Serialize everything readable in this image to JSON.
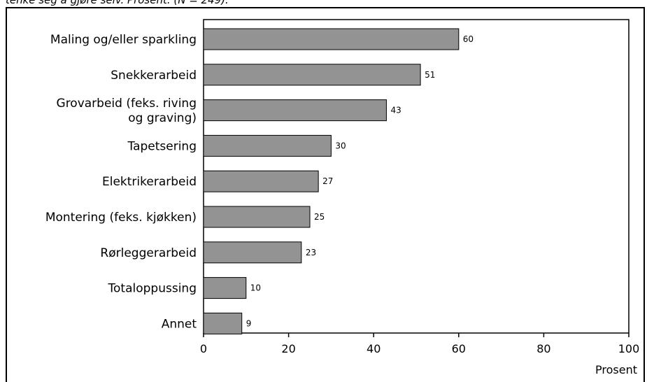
{
  "header": {
    "caption_fragment": "tenke seg å gjøre selv. Prosent. (N = 249)."
  },
  "chart_data": {
    "type": "bar",
    "orientation": "horizontal",
    "categories": [
      [
        "Maling og/eller sparkling"
      ],
      [
        "Snekkerarbeid"
      ],
      [
        "Grovarbeid (feks. riving",
        "og graving)"
      ],
      [
        "Tapetsering"
      ],
      [
        "Elektrikerarbeid"
      ],
      [
        "Montering (feks. kjøkken)"
      ],
      [
        "Rørleggerarbeid"
      ],
      [
        "Totaloppussing"
      ],
      [
        "Annet"
      ]
    ],
    "values": [
      60,
      51,
      43,
      30,
      27,
      25,
      23,
      10,
      9
    ],
    "value_labels": [
      "60",
      "51",
      "43",
      "30",
      "27",
      "25",
      "23",
      "10",
      "9"
    ],
    "xlabel": "Prosent",
    "xlim": [
      0,
      100
    ],
    "xticks": [
      0,
      20,
      40,
      60,
      80,
      100
    ],
    "xtick_labels": [
      "0",
      "20",
      "40",
      "60",
      "80",
      "100"
    ],
    "bar_color": "#939393",
    "grid": false
  }
}
